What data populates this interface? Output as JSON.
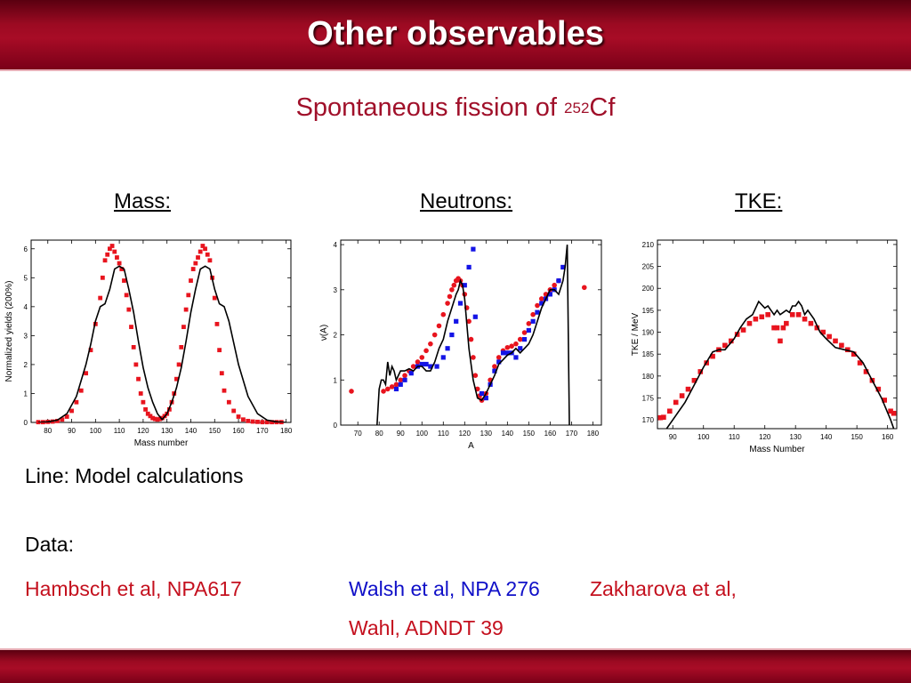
{
  "slide": {
    "title": "Other observables"
  },
  "subtitle": {
    "prefix": "Spontaneous fission of ",
    "mass_number": "252",
    "element": "Cf"
  },
  "panels": {
    "mass": "Mass:",
    "neutrons": "Neutrons:",
    "tke": "TKE:"
  },
  "notes": {
    "line": "Line: Model calculations",
    "data": "Data:"
  },
  "references": {
    "hambsch": "Hambsch et al, NPA617",
    "walsh": "Walsh et al, NPA 276",
    "zakharova": "Zakharova et al,",
    "wahl": "Wahl, ADNDT 39"
  },
  "colors": {
    "accent": "#a0102a",
    "red_data": "#e8141e",
    "blue_data": "#1414e6",
    "model_line": "#000000"
  },
  "chart_data": [
    {
      "type": "line",
      "id": "mass",
      "xlabel": "Mass number",
      "ylabel": "Normalized yields (200%)",
      "xlim": [
        73,
        182
      ],
      "ylim": [
        0,
        6.3
      ],
      "xticks": [
        80,
        90,
        100,
        110,
        120,
        130,
        140,
        150,
        160,
        170,
        180
      ],
      "yticks": [
        0,
        1,
        2,
        3,
        4,
        5,
        6
      ],
      "series": [
        {
          "style": "scatter",
          "color": "#e8141e",
          "x": [
            76,
            78,
            80,
            82,
            84,
            86,
            88,
            90,
            92,
            94,
            96,
            98,
            100,
            102,
            103,
            104,
            105,
            106,
            107,
            108,
            109,
            110,
            111,
            112,
            113,
            114,
            115,
            116,
            117,
            118,
            119,
            120,
            121,
            122,
            123,
            124,
            125,
            126,
            127,
            128,
            129,
            130,
            131,
            132,
            133,
            134,
            135,
            136,
            137,
            138,
            139,
            140,
            141,
            142,
            143,
            144,
            145,
            146,
            147,
            148,
            149,
            150,
            151,
            152,
            153,
            154,
            156,
            158,
            160,
            162,
            164,
            166,
            168,
            170,
            172,
            174,
            176,
            178
          ],
          "y": [
            0.01,
            0.01,
            0.02,
            0.03,
            0.05,
            0.1,
            0.2,
            0.4,
            0.7,
            1.1,
            1.7,
            2.5,
            3.4,
            4.3,
            5.0,
            5.6,
            5.8,
            6.0,
            6.1,
            5.9,
            5.7,
            5.5,
            5.3,
            4.9,
            4.4,
            3.9,
            3.3,
            2.6,
            2.0,
            1.5,
            1.0,
            0.7,
            0.45,
            0.3,
            0.22,
            0.15,
            0.12,
            0.1,
            0.12,
            0.15,
            0.22,
            0.3,
            0.45,
            0.7,
            1.0,
            1.5,
            2.0,
            2.6,
            3.3,
            3.9,
            4.4,
            4.9,
            5.3,
            5.5,
            5.7,
            5.9,
            6.1,
            6.0,
            5.8,
            5.6,
            5.0,
            4.3,
            3.4,
            2.5,
            1.7,
            1.1,
            0.7,
            0.4,
            0.2,
            0.1,
            0.05,
            0.03,
            0.02,
            0.01,
            0.01,
            0.01,
            0.01,
            0.01
          ]
        },
        {
          "style": "line",
          "color": "#000000",
          "x": [
            76,
            80,
            84,
            88,
            92,
            96,
            98,
            100,
            102,
            104,
            106,
            108,
            110,
            112,
            114,
            116,
            118,
            120,
            122,
            124,
            126,
            128,
            130,
            132,
            134,
            136,
            138,
            140,
            142,
            144,
            146,
            148,
            150,
            152,
            154,
            156,
            160,
            164,
            168,
            172,
            176,
            180
          ],
          "y": [
            0.0,
            0.02,
            0.08,
            0.3,
            0.9,
            2.0,
            2.7,
            3.5,
            4.0,
            4.1,
            4.6,
            5.3,
            5.4,
            5.3,
            4.6,
            3.8,
            2.8,
            1.9,
            1.2,
            0.7,
            0.3,
            0.1,
            0.3,
            0.7,
            1.2,
            1.9,
            2.8,
            3.8,
            4.6,
            5.3,
            5.4,
            5.3,
            4.6,
            4.1,
            4.0,
            3.5,
            2.0,
            0.9,
            0.3,
            0.08,
            0.02,
            0.0
          ]
        }
      ]
    },
    {
      "type": "line",
      "id": "neutrons",
      "xlabel": "A",
      "ylabel": "ν(A)",
      "xlim": [
        62,
        184
      ],
      "ylim": [
        0,
        4.1
      ],
      "xticks": [
        70,
        80,
        90,
        100,
        110,
        120,
        130,
        140,
        150,
        160,
        170,
        180
      ],
      "yticks": [
        0,
        1,
        2,
        3,
        4
      ],
      "series": [
        {
          "style": "scatter",
          "color": "#e8141e",
          "x": [
            67,
            82,
            84,
            86,
            88,
            90,
            92,
            94,
            96,
            98,
            100,
            102,
            104,
            106,
            108,
            110,
            112,
            113,
            114,
            115,
            116,
            117,
            118,
            119,
            120,
            121,
            122,
            123,
            124,
            125,
            126,
            127,
            128,
            130,
            132,
            134,
            136,
            138,
            140,
            142,
            144,
            146,
            148,
            150,
            152,
            154,
            156,
            158,
            160,
            162,
            164,
            176
          ],
          "y": [
            0.75,
            0.75,
            0.8,
            0.85,
            0.9,
            1.0,
            1.1,
            1.2,
            1.3,
            1.4,
            1.5,
            1.65,
            1.8,
            2.0,
            2.2,
            2.45,
            2.7,
            2.85,
            3.0,
            3.1,
            3.2,
            3.25,
            3.2,
            3.1,
            2.9,
            2.6,
            2.3,
            1.9,
            1.5,
            1.1,
            0.8,
            0.65,
            0.55,
            0.7,
            1.0,
            1.3,
            1.5,
            1.65,
            1.72,
            1.75,
            1.8,
            1.9,
            2.05,
            2.25,
            2.45,
            2.65,
            2.8,
            2.9,
            3.0,
            3.1,
            3.2,
            3.05
          ]
        },
        {
          "style": "scatter",
          "color": "#1414e6",
          "x": [
            88,
            90,
            92,
            95,
            98,
            100,
            102,
            104,
            107,
            110,
            112,
            114,
            116,
            118,
            120,
            122,
            124,
            125,
            128,
            130,
            132,
            134,
            136,
            138,
            140,
            142,
            144,
            146,
            148,
            150,
            152,
            154,
            156,
            158,
            160,
            162,
            164,
            166
          ],
          "y": [
            0.8,
            0.9,
            1.0,
            1.15,
            1.3,
            1.35,
            1.35,
            1.3,
            1.3,
            1.5,
            1.7,
            2.0,
            2.3,
            2.7,
            3.1,
            3.5,
            3.9,
            2.4,
            0.7,
            0.6,
            0.9,
            1.2,
            1.4,
            1.6,
            1.6,
            1.6,
            1.5,
            1.7,
            1.9,
            2.1,
            2.3,
            2.5,
            2.7,
            2.8,
            2.9,
            3.0,
            3.2,
            3.5
          ]
        },
        {
          "style": "line",
          "color": "#000000",
          "x": [
            79,
            80,
            81,
            82,
            83,
            84,
            85,
            86,
            87,
            88,
            90,
            92,
            94,
            96,
            98,
            100,
            102,
            104,
            106,
            108,
            110,
            112,
            114,
            116,
            117,
            118,
            119,
            120,
            122,
            124,
            126,
            128,
            130,
            132,
            134,
            136,
            138,
            140,
            142,
            144,
            146,
            148,
            150,
            152,
            154,
            156,
            158,
            160,
            162,
            164,
            166,
            167,
            168,
            169
          ],
          "y": [
            0.0,
            0.8,
            1.0,
            1.0,
            0.9,
            1.4,
            1.1,
            1.3,
            1.2,
            1.0,
            1.2,
            1.2,
            1.25,
            1.2,
            1.3,
            1.3,
            1.2,
            1.2,
            1.4,
            1.7,
            1.9,
            2.3,
            2.6,
            2.9,
            3.0,
            3.2,
            3.1,
            2.8,
            1.7,
            1.0,
            0.6,
            0.55,
            0.7,
            0.9,
            1.1,
            1.35,
            1.45,
            1.55,
            1.6,
            1.7,
            1.6,
            1.7,
            1.8,
            2.0,
            2.3,
            2.6,
            2.8,
            3.0,
            3.0,
            2.9,
            3.2,
            3.5,
            4.0,
            0.0
          ]
        }
      ]
    },
    {
      "type": "line",
      "id": "tke",
      "xlabel": "Mass Number",
      "ylabel": "TKE / MeV",
      "xlim": [
        85,
        163
      ],
      "ylim": [
        168,
        211
      ],
      "xticks": [
        90,
        100,
        110,
        120,
        130,
        140,
        150,
        160
      ],
      "yticks": [
        170,
        175,
        180,
        185,
        190,
        195,
        200,
        205,
        210
      ],
      "series": [
        {
          "style": "scatter",
          "color": "#e8141e",
          "x": [
            86,
            87,
            89,
            91,
            93,
            95,
            97,
            99,
            101,
            103,
            105,
            107,
            109,
            111,
            113,
            115,
            117,
            119,
            121,
            123,
            124,
            125,
            126,
            127,
            129,
            131,
            133,
            135,
            137,
            139,
            141,
            143,
            145,
            147,
            149,
            151,
            153,
            155,
            157,
            159,
            161,
            162
          ],
          "y": [
            170.5,
            170.6,
            172,
            174,
            175.5,
            177,
            179,
            181,
            183,
            184.5,
            186,
            187,
            188,
            189.5,
            190.5,
            192,
            193,
            193.5,
            194,
            191,
            191,
            188,
            191,
            192,
            194,
            194,
            193,
            192,
            191,
            190,
            189,
            188,
            187,
            186,
            185,
            183,
            181,
            179,
            177,
            174.5,
            172,
            171.5
          ]
        },
        {
          "style": "line",
          "color": "#000000",
          "x": [
            88,
            91,
            94,
            97,
            100,
            103,
            105,
            107,
            110,
            112,
            114,
            116,
            118,
            120,
            121,
            122,
            123,
            124,
            125,
            126,
            127,
            128,
            129,
            130,
            131,
            132,
            133,
            134,
            136,
            138,
            140,
            143,
            146,
            149,
            152,
            155,
            158,
            161,
            162
          ],
          "y": [
            168,
            171,
            174,
            178,
            182,
            185.5,
            186,
            186,
            188.5,
            191,
            193,
            194,
            197,
            195.5,
            196,
            195,
            194,
            195,
            194,
            194.5,
            195,
            194.5,
            196,
            196,
            197,
            196,
            194,
            195,
            193,
            190,
            188.5,
            186.5,
            186,
            185.5,
            183,
            179,
            175,
            170,
            168
          ]
        }
      ]
    }
  ]
}
